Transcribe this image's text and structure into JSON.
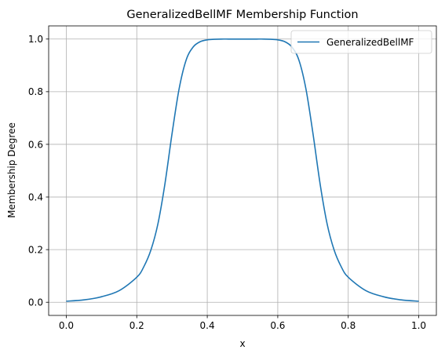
{
  "chart_data": {
    "type": "line",
    "title": "GeneralizedBellMF Membership Function",
    "xlabel": "x",
    "ylabel": "Membership Degree",
    "xlim": [
      -0.05,
      1.05
    ],
    "ylim": [
      -0.05,
      1.05
    ],
    "xticks": [
      0.0,
      0.2,
      0.4,
      0.6,
      0.8,
      1.0
    ],
    "yticks": [
      0.0,
      0.2,
      0.4,
      0.6,
      0.8,
      1.0
    ],
    "xtick_labels": [
      "0.0",
      "0.2",
      "0.4",
      "0.6",
      "0.8",
      "1.0"
    ],
    "ytick_labels": [
      "0.0",
      "0.2",
      "0.4",
      "0.6",
      "0.8",
      "1.0"
    ],
    "grid": true,
    "legend_position": "top-right",
    "series": [
      {
        "name": "GeneralizedBellMF",
        "color": "#1f77b4",
        "x": [
          0.0,
          0.05,
          0.1,
          0.15,
          0.2,
          0.22,
          0.24,
          0.26,
          0.28,
          0.3,
          0.32,
          0.34,
          0.36,
          0.38,
          0.4,
          0.42,
          0.44,
          0.46,
          0.48,
          0.5,
          0.52,
          0.54,
          0.56,
          0.58,
          0.6,
          0.62,
          0.64,
          0.66,
          0.68,
          0.7,
          0.72,
          0.74,
          0.76,
          0.78,
          0.8,
          0.85,
          0.9,
          0.95,
          1.0
        ],
        "y": [
          0.004,
          0.009,
          0.021,
          0.044,
          0.095,
          0.135,
          0.198,
          0.298,
          0.451,
          0.64,
          0.81,
          0.92,
          0.97,
          0.99,
          0.997,
          0.999,
          1.0,
          1.0,
          1.0,
          1.0,
          1.0,
          1.0,
          1.0,
          0.999,
          0.997,
          0.99,
          0.97,
          0.92,
          0.81,
          0.64,
          0.451,
          0.298,
          0.198,
          0.135,
          0.095,
          0.044,
          0.021,
          0.009,
          0.004
        ]
      }
    ]
  }
}
